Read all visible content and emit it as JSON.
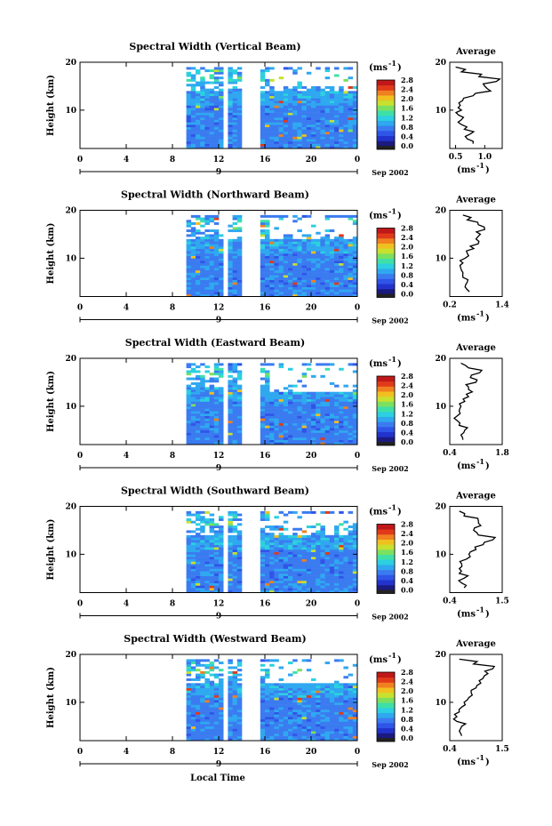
{
  "figure": {
    "xlabel": "Local Time",
    "date_label": "Sep 2002",
    "day_marker": "9",
    "colorbar_unit": "(ms",
    "colorbar_unit_exp": "-1",
    "profile_title": "Average",
    "profile_unit": "(ms",
    "profile_unit_exp": "-1",
    "ylabel": "Height (km)"
  },
  "chart_data": [
    {
      "type": "heatmap",
      "title": "Spectral Width (Vertical Beam)",
      "x_ticks": [
        "0",
        "4",
        "8",
        "12",
        "16",
        "20",
        "0"
      ],
      "xlim": [
        0,
        24
      ],
      "ylim": [
        2,
        20
      ],
      "y_ticks": [
        "10",
        "20"
      ],
      "gaps_hours": [
        [
          0,
          9.3
        ],
        [
          12.5,
          12.9
        ],
        [
          13.8,
          15.6
        ]
      ],
      "upper_blank_km": 15,
      "colorbar_ticks": [
        "0.0",
        "0.4",
        "0.8",
        "1.2",
        "1.6",
        "2.0",
        "2.4",
        "2.8"
      ],
      "profile": {
        "x_ticks": [
          "0.5",
          "1.0"
        ],
        "xlim": [
          0.4,
          1.3
        ],
        "heights": [
          3,
          4,
          5,
          6,
          7,
          8,
          9,
          10,
          11,
          12,
          13,
          14,
          15,
          16,
          17,
          18,
          19
        ],
        "values": [
          0.8,
          0.7,
          0.75,
          0.65,
          0.6,
          0.6,
          0.55,
          0.6,
          0.58,
          0.62,
          0.8,
          1.1,
          1.0,
          1.2,
          0.9,
          0.6,
          0.5
        ]
      }
    },
    {
      "type": "heatmap",
      "title": "Spectral Width (Northward Beam)",
      "x_ticks": [
        "0",
        "4",
        "8",
        "12",
        "16",
        "20",
        "0"
      ],
      "xlim": [
        0,
        24
      ],
      "ylim": [
        2,
        20
      ],
      "y_ticks": [
        "10",
        "20"
      ],
      "gaps_hours": [
        [
          0,
          9.3
        ],
        [
          12.5,
          12.9
        ],
        [
          13.8,
          15.6
        ]
      ],
      "upper_blank_km": 15,
      "colorbar_ticks": [
        "0.0",
        "0.4",
        "0.8",
        "1.2",
        "1.6",
        "2.0",
        "2.4",
        "2.8"
      ],
      "profile": {
        "x_ticks": [
          "0.2",
          "1.4"
        ],
        "xlim": [
          0.2,
          1.4
        ],
        "heights": [
          3,
          4,
          5,
          6,
          7,
          8,
          9,
          10,
          11,
          12,
          13,
          14,
          15,
          16,
          17,
          18,
          19
        ],
        "values": [
          0.65,
          0.55,
          0.6,
          0.5,
          0.5,
          0.45,
          0.5,
          0.55,
          0.6,
          0.75,
          0.85,
          0.8,
          0.9,
          1.0,
          0.85,
          0.6,
          0.5
        ]
      }
    },
    {
      "type": "heatmap",
      "title": "Spectral Width (Eastward Beam)",
      "x_ticks": [
        "0",
        "4",
        "8",
        "12",
        "16",
        "20",
        "0"
      ],
      "xlim": [
        0,
        24
      ],
      "ylim": [
        2,
        20
      ],
      "y_ticks": [
        "10",
        "20"
      ],
      "gaps_hours": [
        [
          0,
          9.3
        ],
        [
          12.5,
          12.9
        ],
        [
          13.8,
          15.6
        ]
      ],
      "upper_blank_km": 13,
      "colorbar_ticks": [
        "0.0",
        "0.4",
        "0.8",
        "1.2",
        "1.6",
        "2.0",
        "2.4",
        "2.8"
      ],
      "profile": {
        "x_ticks": [
          "0.4",
          "1.8"
        ],
        "xlim": [
          0.4,
          1.8
        ],
        "heights": [
          3,
          4,
          5,
          6,
          7,
          8,
          9,
          10,
          11,
          12,
          13,
          14,
          15,
          16,
          17,
          18,
          19
        ],
        "values": [
          0.75,
          0.7,
          0.8,
          0.65,
          0.6,
          0.6,
          0.65,
          0.7,
          0.8,
          0.9,
          1.0,
          0.9,
          1.1,
          0.95,
          1.2,
          0.9,
          0.7
        ]
      }
    },
    {
      "type": "heatmap",
      "title": "Spectral Width (Southward Beam)",
      "x_ticks": [
        "0",
        "4",
        "8",
        "12",
        "16",
        "20",
        "0"
      ],
      "xlim": [
        0,
        24
      ],
      "ylim": [
        2,
        20
      ],
      "y_ticks": [
        "10",
        "20"
      ],
      "gaps_hours": [
        [
          0,
          9.3
        ],
        [
          12.5,
          12.9
        ],
        [
          13.8,
          15.6
        ]
      ],
      "upper_blank_km": 16,
      "colorbar_ticks": [
        "0.0",
        "0.4",
        "0.8",
        "1.2",
        "1.6",
        "2.0",
        "2.4",
        "2.8"
      ],
      "profile": {
        "x_ticks": [
          "0.4",
          "1.5"
        ],
        "xlim": [
          0.4,
          1.5
        ],
        "heights": [
          3,
          4,
          5,
          6,
          7,
          8,
          9,
          10,
          11,
          12,
          13,
          14,
          15,
          16,
          17,
          18,
          19
        ],
        "values": [
          0.7,
          0.65,
          0.7,
          0.6,
          0.6,
          0.65,
          0.75,
          0.8,
          0.95,
          1.1,
          1.3,
          1.0,
          0.9,
          1.05,
          1.0,
          0.7,
          0.6
        ]
      }
    },
    {
      "type": "heatmap",
      "title": "Spectral Width (Westward Beam)",
      "x_ticks": [
        "0",
        "4",
        "8",
        "12",
        "16",
        "20",
        "0"
      ],
      "xlim": [
        0,
        24
      ],
      "ylim": [
        2,
        20
      ],
      "y_ticks": [
        "10",
        "20"
      ],
      "gaps_hours": [
        [
          0,
          9.3
        ],
        [
          12.5,
          12.9
        ],
        [
          13.8,
          15.6
        ]
      ],
      "upper_blank_km": 14,
      "colorbar_ticks": [
        "0.0",
        "0.4",
        "0.8",
        "1.2",
        "1.6",
        "2.0",
        "2.4",
        "2.8"
      ],
      "profile": {
        "x_ticks": [
          "0.4",
          "1.5"
        ],
        "xlim": [
          0.4,
          1.5
        ],
        "heights": [
          3,
          4,
          5,
          6,
          7,
          8,
          9,
          10,
          11,
          12,
          13,
          14,
          15,
          16,
          17,
          18,
          19
        ],
        "values": [
          0.65,
          0.6,
          0.65,
          0.55,
          0.55,
          0.6,
          0.65,
          0.7,
          0.8,
          0.85,
          0.95,
          1.05,
          1.1,
          1.2,
          1.3,
          0.9,
          0.6
        ]
      }
    }
  ]
}
